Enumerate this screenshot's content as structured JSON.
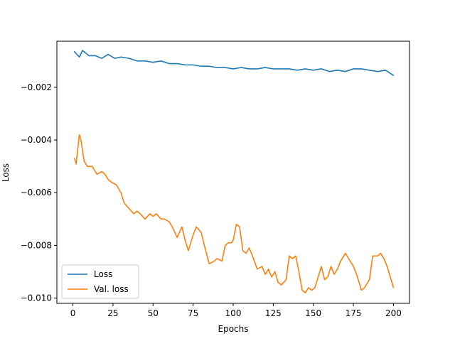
{
  "chart_data": {
    "type": "line",
    "xlabel": "Epochs",
    "ylabel": "Loss",
    "xlim": [
      -10,
      210
    ],
    "ylim": [
      -0.0102,
      -0.00025
    ],
    "x_ticks": [
      0,
      25,
      50,
      75,
      100,
      125,
      150,
      175,
      200
    ],
    "x_tick_labels": [
      "0",
      "25",
      "50",
      "75",
      "100",
      "125",
      "150",
      "175",
      "200"
    ],
    "y_ticks": [
      -0.002,
      -0.004,
      -0.006,
      -0.008,
      -0.01
    ],
    "y_tick_labels": [
      "−0.002",
      "−0.004",
      "−0.006",
      "−0.008",
      "−0.010"
    ],
    "grid": false,
    "legend_position": "lower-left",
    "series": [
      {
        "name": "Loss",
        "color": "#1f77b4",
        "x": [
          1,
          4,
          6,
          10,
          14,
          18,
          22,
          26,
          30,
          35,
          40,
          45,
          50,
          55,
          60,
          65,
          70,
          75,
          80,
          85,
          90,
          95,
          100,
          105,
          110,
          115,
          120,
          125,
          130,
          135,
          140,
          145,
          150,
          155,
          160,
          165,
          170,
          175,
          180,
          185,
          190,
          195,
          200
        ],
        "y": [
          -0.00065,
          -0.00085,
          -0.0006,
          -0.0008,
          -0.0008,
          -0.0009,
          -0.00075,
          -0.0009,
          -0.00085,
          -0.0009,
          -0.001,
          -0.001,
          -0.00105,
          -0.001,
          -0.0011,
          -0.0011,
          -0.00115,
          -0.00115,
          -0.0012,
          -0.0012,
          -0.00125,
          -0.00125,
          -0.0013,
          -0.00125,
          -0.0013,
          -0.0013,
          -0.00125,
          -0.0013,
          -0.0013,
          -0.0013,
          -0.00135,
          -0.0013,
          -0.00135,
          -0.0013,
          -0.0014,
          -0.00135,
          -0.0014,
          -0.0013,
          -0.0013,
          -0.00135,
          -0.0014,
          -0.00135,
          -0.00155
        ]
      },
      {
        "name": "Val. loss",
        "color": "#ff7f0e",
        "x": [
          1,
          2,
          4,
          5,
          7,
          9,
          12,
          15,
          18,
          20,
          22,
          24,
          27,
          30,
          32,
          35,
          38,
          40,
          42,
          45,
          48,
          50,
          52,
          55,
          57,
          60,
          62,
          65,
          68,
          70,
          72,
          75,
          77,
          80,
          82,
          85,
          88,
          90,
          93,
          95,
          97,
          99,
          100,
          102,
          104,
          106,
          108,
          110,
          112,
          115,
          118,
          120,
          122,
          124,
          126,
          128,
          130,
          133,
          135,
          137,
          139,
          141,
          143,
          145,
          147,
          149,
          151,
          153,
          155,
          157,
          159,
          161,
          163,
          165,
          167,
          170,
          172,
          175,
          177,
          180,
          182,
          185,
          187,
          190,
          192,
          194,
          196,
          198,
          200
        ],
        "y": [
          -0.0047,
          -0.0049,
          -0.0038,
          -0.004,
          -0.0048,
          -0.005,
          -0.005,
          -0.0053,
          -0.0052,
          -0.0053,
          -0.0055,
          -0.0056,
          -0.0057,
          -0.006,
          -0.0064,
          -0.0066,
          -0.0068,
          -0.0067,
          -0.0068,
          -0.007,
          -0.0068,
          -0.0069,
          -0.0068,
          -0.007,
          -0.007,
          -0.0071,
          -0.0073,
          -0.0077,
          -0.0073,
          -0.0078,
          -0.0082,
          -0.0076,
          -0.0073,
          -0.0075,
          -0.008,
          -0.0087,
          -0.0086,
          -0.0085,
          -0.0086,
          -0.008,
          -0.0079,
          -0.0079,
          -0.0078,
          -0.0072,
          -0.0073,
          -0.0082,
          -0.0083,
          -0.0081,
          -0.0084,
          -0.0089,
          -0.0088,
          -0.0091,
          -0.0089,
          -0.0092,
          -0.009,
          -0.0094,
          -0.0095,
          -0.0093,
          -0.0084,
          -0.0085,
          -0.0084,
          -0.009,
          -0.0097,
          -0.0098,
          -0.0096,
          -0.0097,
          -0.0096,
          -0.0092,
          -0.0088,
          -0.0093,
          -0.0092,
          -0.0088,
          -0.0091,
          -0.0089,
          -0.0086,
          -0.0083,
          -0.0085,
          -0.0088,
          -0.0091,
          -0.0097,
          -0.0096,
          -0.0093,
          -0.0084,
          -0.0084,
          -0.0083,
          -0.0085,
          -0.0088,
          -0.0092,
          -0.0096
        ]
      }
    ]
  }
}
